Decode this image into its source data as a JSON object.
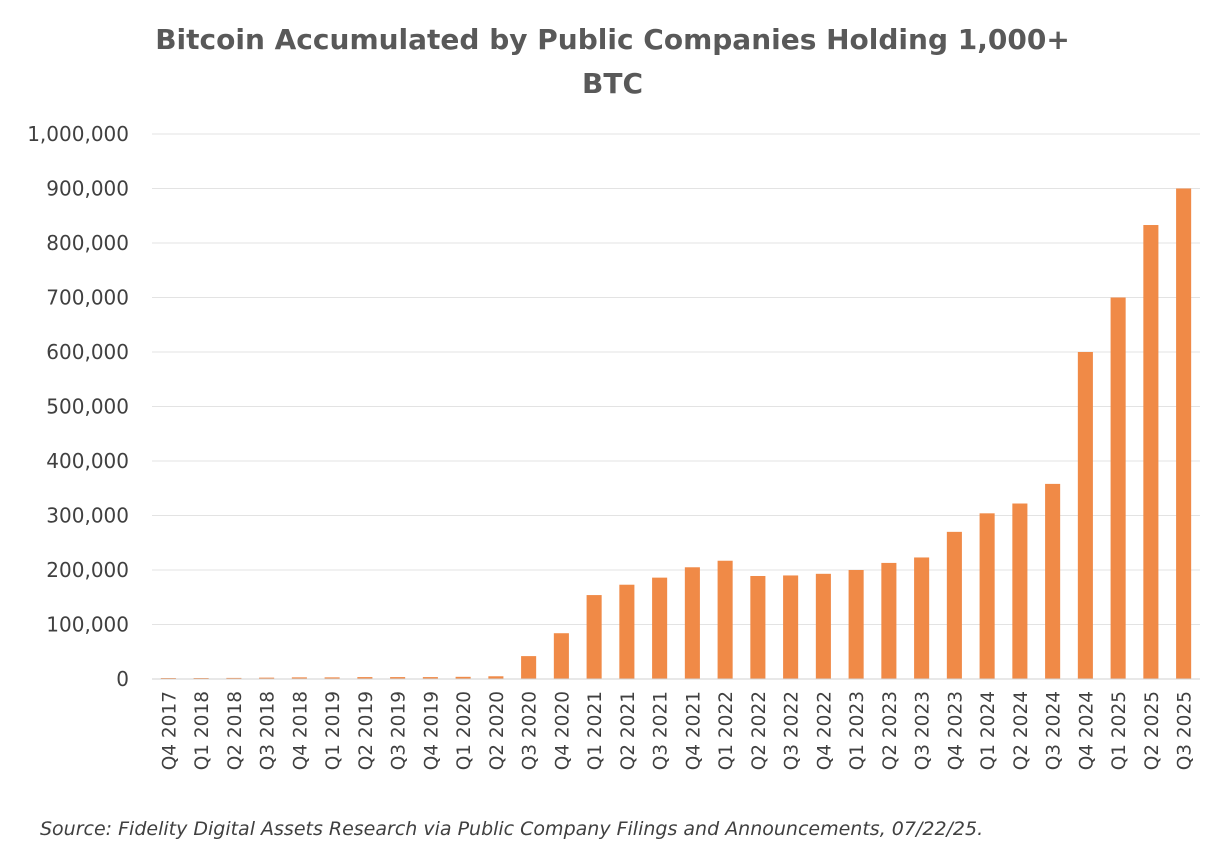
{
  "chart_data": {
    "type": "bar",
    "title_lines": [
      "Bitcoin Accumulated by Public Companies Holding 1,000+",
      "BTC"
    ],
    "xlabel": "",
    "ylabel": "",
    "ylim": [
      0,
      1000000
    ],
    "y_ticks": [
      0,
      100000,
      200000,
      300000,
      400000,
      500000,
      600000,
      700000,
      800000,
      900000,
      1000000
    ],
    "y_tick_labels": [
      "0",
      "100,000",
      "200,000",
      "300,000",
      "400,000",
      "500,000",
      "600,000",
      "700,000",
      "800,000",
      "900,000",
      "1,000,000"
    ],
    "grid": true,
    "legend": "none",
    "bar_color": "#F08A47",
    "categories": [
      "Q4 2017",
      "Q1 2018",
      "Q2 2018",
      "Q3 2018",
      "Q4 2018",
      "Q1 2019",
      "Q2 2019",
      "Q3 2019",
      "Q4 2019",
      "Q1 2020",
      "Q2 2020",
      "Q3 2020",
      "Q4 2020",
      "Q1 2021",
      "Q2 2021",
      "Q3 2021",
      "Q4 2021",
      "Q1 2022",
      "Q2 2022",
      "Q3 2022",
      "Q4 2022",
      "Q1 2023",
      "Q2 2023",
      "Q3 2023",
      "Q4 2023",
      "Q1 2024",
      "Q2 2024",
      "Q3 2024",
      "Q4 2024",
      "Q1 2025",
      "Q2 2025",
      "Q3 2025"
    ],
    "values": [
      1000,
      1500,
      2000,
      2500,
      3000,
      3000,
      3500,
      3500,
      3500,
      4000,
      5000,
      42000,
      84000,
      154000,
      173000,
      186000,
      205000,
      217000,
      189000,
      190000,
      193000,
      200000,
      213000,
      223000,
      270000,
      304000,
      322000,
      358000,
      600000,
      700000,
      833000,
      900000
    ],
    "source": "Source: Fidelity Digital Assets Research via Public Company Filings and Announcements, 07/22/25."
  }
}
